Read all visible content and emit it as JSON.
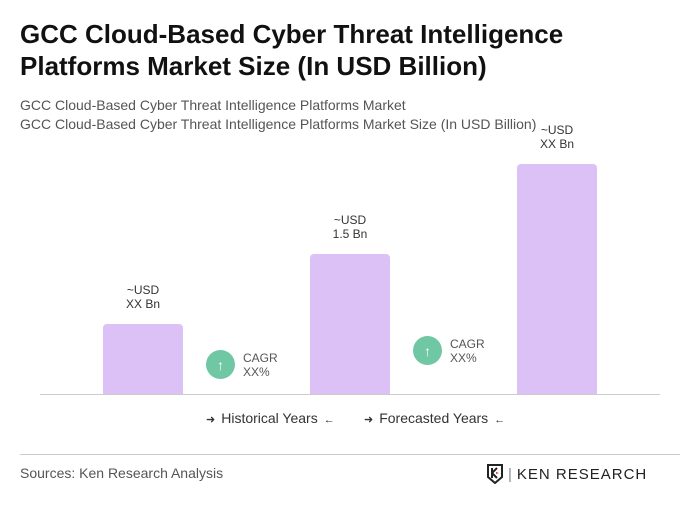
{
  "title": "GCC Cloud-Based Cyber Threat Intelligence Platforms Market Size (In USD Billion)",
  "subtitle1": "GCC Cloud-Based Cyber Threat Intelligence Platforms Market",
  "subtitle2": "GCC Cloud-Based Cyber Threat Intelligence Platforms Market Size (In USD Billion)",
  "chart_data": {
    "type": "bar",
    "categories": [
      "",
      "",
      ""
    ],
    "values": [
      0.75,
      1.5,
      2.46
    ],
    "data_labels": [
      [
        "~USD",
        "XX Bn"
      ],
      [
        "~USD",
        "1.5 Bn"
      ],
      [
        "~USD",
        "XX Bn"
      ]
    ],
    "cagr": [
      {
        "label": "CAGR",
        "value": "XX%"
      },
      {
        "label": "CAGR",
        "value": "XX%"
      }
    ],
    "legend": [
      "Historical Years",
      "Forecasted Years"
    ],
    "legend_placement": "bottom",
    "grid": false,
    "bar_color": "#dcc1f6",
    "cagr_color": "#6fc7a3"
  },
  "sources": "Sources: Ken Research Analysis",
  "logo_text": "KEN RESEARCH"
}
